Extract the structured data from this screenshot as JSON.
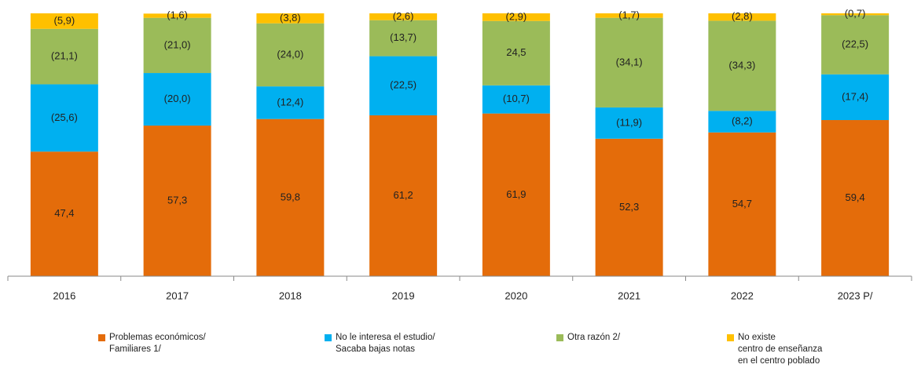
{
  "chart_data": {
    "type": "stacked_bar",
    "categories": [
      "2016",
      "2017",
      "2018",
      "2019",
      "2020",
      "2021",
      "2022",
      "2023 P/"
    ],
    "ylim": [
      0,
      100
    ],
    "series": [
      {
        "name": "Problemas económicos/\nFamiliares 1/",
        "color": "#e46c0a",
        "values": [
          47.4,
          57.3,
          59.8,
          61.2,
          61.9,
          52.3,
          54.7,
          59.4
        ],
        "value_labels": [
          "47,4",
          "57,3",
          "59,8",
          "61,2",
          "61,9",
          "52,3",
          "54,7",
          "59,4"
        ]
      },
      {
        "name": "No le interesa el estudio/\nSacaba bajas notas",
        "color": "#00b0f0",
        "values": [
          25.6,
          20.0,
          12.4,
          22.5,
          10.7,
          11.9,
          8.2,
          17.4
        ],
        "value_labels": [
          "(25,6)",
          "(20,0)",
          "(12,4)",
          "(22,5)",
          "(10,7)",
          "(11,9)",
          "(8,2)",
          "(17,4)"
        ]
      },
      {
        "name": "Otra razón 2/",
        "color": "#9bbb59",
        "values": [
          21.1,
          21.0,
          24.0,
          13.7,
          24.5,
          34.1,
          34.3,
          22.5
        ],
        "value_labels": [
          "(21,1)",
          "(21,0)",
          "(24,0)",
          "(13,7)",
          "24,5",
          "(34,1)",
          "(34,3)",
          "(22,5)"
        ]
      },
      {
        "name": "No existe\ncentro de enseñanza\nen el centro poblado",
        "color": "#ffc000",
        "values": [
          5.9,
          1.6,
          3.8,
          2.6,
          2.9,
          1.7,
          2.8,
          0.7
        ],
        "value_labels": [
          "(5,9)",
          "(1,6)",
          "(3,8)",
          "(2,6)",
          "(2,9)",
          "(1,7)",
          "(2,8)",
          "(0,7)"
        ]
      }
    ]
  }
}
